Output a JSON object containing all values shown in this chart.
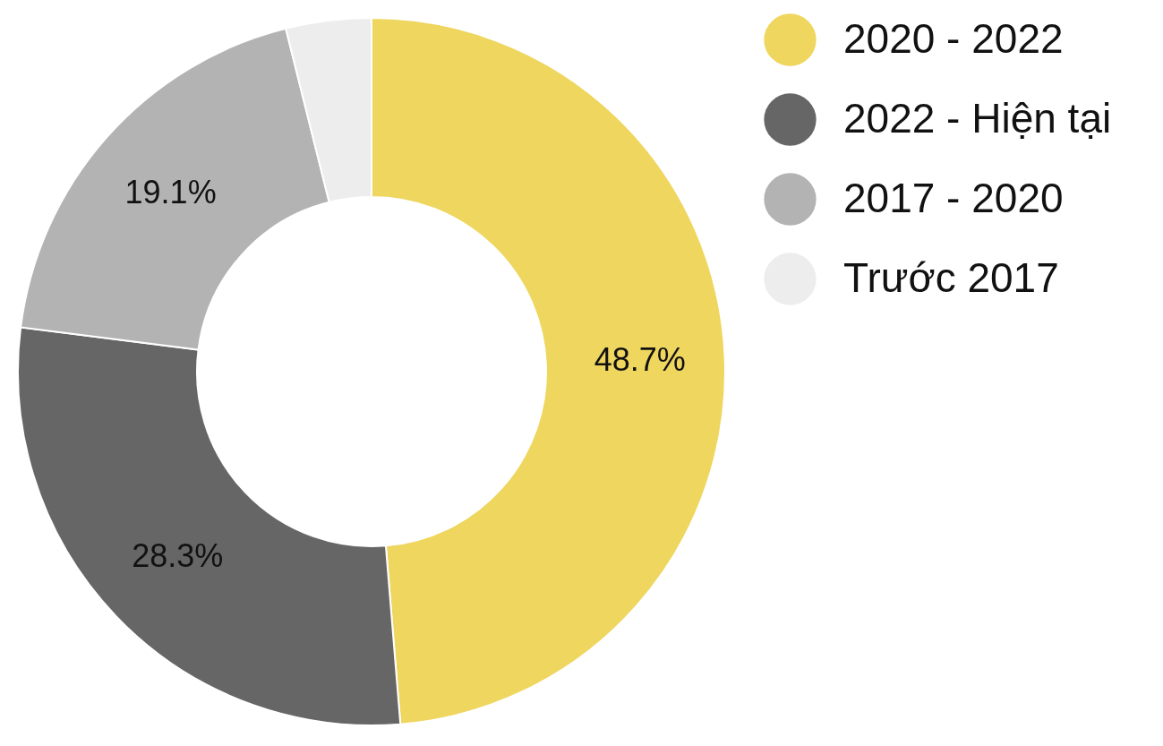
{
  "chart_data": {
    "type": "donut",
    "categories": [
      "2020 - 2022",
      "2022 - Hiện tại",
      "2017 - 2020",
      "Trước 2017"
    ],
    "values": [
      48.7,
      28.3,
      19.1,
      3.9
    ],
    "colors": [
      "#eed65f",
      "#666666",
      "#b3b3b3",
      "#ededed"
    ],
    "value_labels": [
      "48.7%",
      "28.3%",
      "19.1%",
      null
    ],
    "legend": "right"
  }
}
